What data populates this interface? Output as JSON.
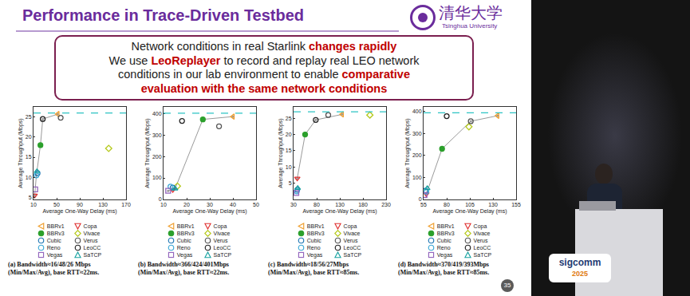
{
  "header": {
    "title": "Performance in Trace-Driven Testbed",
    "logo": {
      "chinese": "清华大学",
      "english": "Tsinghua University"
    }
  },
  "box": {
    "lines": [
      [
        {
          "text": "Network conditions in real Starlink"
        },
        {
          "text": "changes rapidly",
          "color": "#c00000"
        }
      ],
      [
        {
          "text": "We use"
        },
        {
          "text": "LeoReplayer",
          "color": "#c00000"
        },
        {
          "text": "to record and replay real LEO network"
        }
      ],
      [
        {
          "text": "conditions in our lab environment to enable"
        },
        {
          "text": "comparative",
          "color": "#c00000"
        }
      ],
      [
        {
          "text": "evaluation with the same network conditions",
          "color": "#c00000"
        }
      ]
    ]
  },
  "chart_data": [
    {
      "type": "scatter",
      "label": "(a)",
      "caption": "Bandwidth≈16/48/26 Mbps (Min/Max/Avg), base RTT≈22ms.",
      "x_label": "Average One-Way Delay (ms)",
      "y_label": "Average Throughput (Mbps)",
      "xlim": [
        10,
        170
      ],
      "xticks": [
        10,
        50,
        90,
        130,
        170
      ],
      "ylim": [
        4.5,
        27.5
      ],
      "yticks": [
        5,
        10,
        15,
        20,
        25
      ],
      "grid": false,
      "legend": "bottom",
      "bandwidth": 26,
      "frontier": {
        "x": [
          12,
          15,
          22,
          26,
          52
        ],
        "y": [
          5.5,
          10.5,
          18,
          24.5,
          25.7
        ]
      },
      "series": [
        {
          "name": "BBRv1",
          "color": "#f0a030",
          "marker": "triangle-left-open",
          "x": [
            52
          ],
          "values": [
            25.7
          ]
        },
        {
          "name": "Copa",
          "color": "#e03030",
          "marker": "triangle-down-open",
          "x": [
            12
          ],
          "values": [
            5.5
          ]
        },
        {
          "name": "BBRv3",
          "color": "#2ca02c",
          "marker": "circle",
          "x": [
            22
          ],
          "values": [
            18
          ]
        },
        {
          "name": "Vivace",
          "color": "#b5c91a",
          "marker": "diamond-open",
          "x": [
            140
          ],
          "values": [
            17.2
          ]
        },
        {
          "name": "Cubic",
          "color": "#1f77b4",
          "marker": "circle-open",
          "x": [
            17
          ],
          "values": [
            11
          ]
        },
        {
          "name": "Verus",
          "color": "#555555",
          "marker": "circle-open",
          "x": [
            57
          ],
          "values": [
            24.8
          ]
        },
        {
          "name": "Reno",
          "color": "#3fa9d6",
          "marker": "circle-open",
          "x": [
            15
          ],
          "values": [
            10.5
          ]
        },
        {
          "name": "LeoCC",
          "color": "#222222",
          "marker": "circle-open",
          "x": [
            26
          ],
          "values": [
            24.5
          ]
        },
        {
          "name": "Vegas",
          "color": "#9467bd",
          "marker": "square-open",
          "x": [
            13
          ],
          "values": [
            7
          ]
        },
        {
          "name": "SaTCP",
          "color": "#17a2a0",
          "marker": "triangle-up-open",
          "x": [
            16
          ],
          "values": [
            11.5
          ]
        }
      ]
    },
    {
      "type": "scatter",
      "label": "(b)",
      "caption": "Bandwidth≈366/424/401Mbps (Min/Max/Avg), base RTT≈22ms.",
      "x_label": "Average One-Way Delay (ms)",
      "y_label": "Average Throughput (Mbps)",
      "xlim": [
        10,
        50
      ],
      "xticks": [
        10,
        20,
        30,
        40,
        50
      ],
      "ylim": [
        0,
        430
      ],
      "yticks": [
        0,
        100,
        200,
        300,
        400
      ],
      "grid": false,
      "legend": "bottom",
      "bandwidth": 401,
      "frontier": {
        "x": [
          12,
          15,
          27,
          40
        ],
        "y": [
          40,
          50,
          372,
          385
        ]
      },
      "series": [
        {
          "name": "BBRv1",
          "color": "#f0a030",
          "marker": "triangle-left-open",
          "x": [
            40
          ],
          "values": [
            385
          ]
        },
        {
          "name": "Copa",
          "color": "#e03030",
          "marker": "triangle-down-open",
          "x": [
            14
          ],
          "values": [
            45
          ]
        },
        {
          "name": "BBRv3",
          "color": "#2ca02c",
          "marker": "circle",
          "x": [
            27
          ],
          "values": [
            372
          ]
        },
        {
          "name": "Vivace",
          "color": "#b5c91a",
          "marker": "diamond-open",
          "x": [
            16
          ],
          "values": [
            62
          ]
        },
        {
          "name": "Cubic",
          "color": "#1f77b4",
          "marker": "circle-open",
          "x": [
            14
          ],
          "values": [
            55
          ]
        },
        {
          "name": "Verus",
          "color": "#555555",
          "marker": "circle-open",
          "x": [
            34
          ],
          "values": [
            340
          ]
        },
        {
          "name": "Reno",
          "color": "#3fa9d6",
          "marker": "circle-open",
          "x": [
            13
          ],
          "values": [
            60
          ]
        },
        {
          "name": "LeoCC",
          "color": "#222222",
          "marker": "circle-open",
          "x": [
            18
          ],
          "values": [
            365
          ]
        },
        {
          "name": "Vegas",
          "color": "#9467bd",
          "marker": "square-open",
          "x": [
            12
          ],
          "values": [
            40
          ]
        },
        {
          "name": "SaTCP",
          "color": "#17a2a0",
          "marker": "triangle-up-open",
          "x": [
            15
          ],
          "values": [
            50
          ]
        }
      ]
    },
    {
      "type": "scatter",
      "label": "(c)",
      "caption": "Bandwidth≈18/56/27Mbps (Min/Max/Avg), base RTT≈85ms.",
      "x_label": "Average One-Way Delay (ms)",
      "y_label": "Average Throughput (Mbps)",
      "xlim": [
        30,
        230
      ],
      "xticks": [
        30,
        80,
        130,
        180,
        230
      ],
      "ylim": [
        0,
        28.5
      ],
      "yticks": [
        5,
        10,
        15,
        20,
        25
      ],
      "grid": false,
      "legend": "bottom",
      "bandwidth": 27,
      "frontier": {
        "x": [
          38,
          55,
          78,
          135
        ],
        "y": [
          6.5,
          20,
          24.5,
          26.2
        ]
      },
      "series": [
        {
          "name": "BBRv1",
          "color": "#f0a030",
          "marker": "triangle-left-open",
          "x": [
            135
          ],
          "values": [
            26.2
          ]
        },
        {
          "name": "Copa",
          "color": "#e03030",
          "marker": "triangle-down-open",
          "x": [
            38
          ],
          "values": [
            6.5
          ]
        },
        {
          "name": "BBRv3",
          "color": "#2ca02c",
          "marker": "circle",
          "x": [
            55
          ],
          "values": [
            20
          ]
        },
        {
          "name": "Vivace",
          "color": "#b5c91a",
          "marker": "diamond-open",
          "x": [
            195
          ],
          "values": [
            26
          ]
        },
        {
          "name": "Cubic",
          "color": "#1f77b4",
          "marker": "circle-open",
          "x": [
            38
          ],
          "values": [
            3
          ]
        },
        {
          "name": "Verus",
          "color": "#555555",
          "marker": "circle-open",
          "x": [
            105
          ],
          "values": [
            26
          ]
        },
        {
          "name": "Reno",
          "color": "#3fa9d6",
          "marker": "circle-open",
          "x": [
            37
          ],
          "values": [
            2.5
          ]
        },
        {
          "name": "LeoCC",
          "color": "#222222",
          "marker": "circle-open",
          "x": [
            78
          ],
          "values": [
            24.5
          ]
        },
        {
          "name": "Vegas",
          "color": "#9467bd",
          "marker": "square-open",
          "x": [
            36
          ],
          "values": [
            2
          ]
        },
        {
          "name": "SaTCP",
          "color": "#17a2a0",
          "marker": "triangle-up-open",
          "x": [
            39
          ],
          "values": [
            3.5
          ]
        }
      ]
    },
    {
      "type": "scatter",
      "label": "(d)",
      "caption": "Bandwidth≈370/419/393Mbps (Min/Max/Avg), base RTT≈85ms.",
      "x_label": "Average One-Way Delay (ms)",
      "y_label": "Average Throughput (Mbps)",
      "xlim": [
        55,
        155
      ],
      "xticks": [
        55,
        80,
        105,
        130,
        155
      ],
      "ylim": [
        0,
        420
      ],
      "yticks": [
        0,
        100,
        200,
        300,
        400
      ],
      "grid": false,
      "legend": "bottom",
      "bandwidth": 393,
      "frontier": {
        "x": [
          58,
          75,
          106,
          135
        ],
        "y": [
          25,
          230,
          355,
          380
        ]
      },
      "series": [
        {
          "name": "BBRv1",
          "color": "#f0a030",
          "marker": "triangle-left-open",
          "x": [
            135
          ],
          "values": [
            380
          ]
        },
        {
          "name": "Copa",
          "color": "#e03030",
          "marker": "triangle-down-open",
          "x": [
            58
          ],
          "values": [
            25
          ]
        },
        {
          "name": "BBRv3",
          "color": "#2ca02c",
          "marker": "circle",
          "x": [
            75
          ],
          "values": [
            230
          ]
        },
        {
          "name": "Vivace",
          "color": "#b5c91a",
          "marker": "diamond-open",
          "x": [
            104
          ],
          "values": [
            330
          ]
        },
        {
          "name": "Cubic",
          "color": "#1f77b4",
          "marker": "circle-open",
          "x": [
            57
          ],
          "values": [
            40
          ]
        },
        {
          "name": "Verus",
          "color": "#555555",
          "marker": "circle-open",
          "x": [
            106
          ],
          "values": [
            355
          ]
        },
        {
          "name": "Reno",
          "color": "#3fa9d6",
          "marker": "circle-open",
          "x": [
            58
          ],
          "values": [
            35
          ]
        },
        {
          "name": "LeoCC",
          "color": "#222222",
          "marker": "circle-open",
          "x": [
            80
          ],
          "values": [
            378
          ]
        },
        {
          "name": "Vegas",
          "color": "#9467bd",
          "marker": "square-open",
          "x": [
            56
          ],
          "values": [
            20
          ]
        },
        {
          "name": "SaTCP",
          "color": "#17a2a0",
          "marker": "triangle-up-open",
          "x": [
            59
          ],
          "values": [
            50
          ]
        }
      ]
    }
  ],
  "page_number": "35",
  "video": {
    "logo": "sigcomm",
    "year": "2025"
  }
}
